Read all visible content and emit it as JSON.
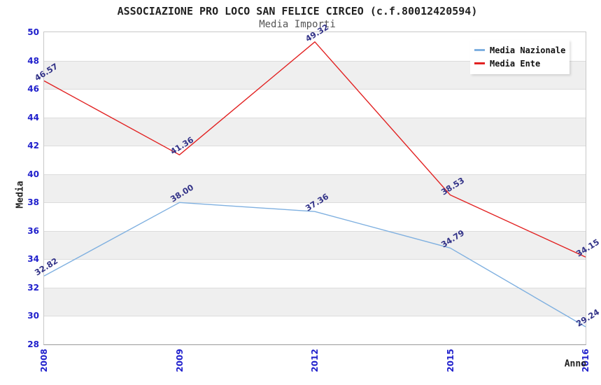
{
  "title": "ASSOCIAZIONE PRO LOCO SAN FELICE CIRCEO (c.f.80012420594)",
  "subtitle": "Media Importi",
  "chart_data": {
    "type": "line",
    "categories": [
      "2008",
      "2009",
      "2012",
      "2015",
      "2016"
    ],
    "series": [
      {
        "name": "Media Nazionale",
        "color": "#7fb0e0",
        "values": [
          32.82,
          38.0,
          37.36,
          34.79,
          29.24
        ]
      },
      {
        "name": "Media Ente",
        "color": "#e22222",
        "values": [
          46.57,
          41.36,
          49.32,
          38.53,
          34.15
        ]
      }
    ],
    "xlabel": "Anno",
    "ylabel": "Media",
    "ylim": [
      28,
      50
    ],
    "ytick_step": 2,
    "grid": true,
    "legend_position": "top-right",
    "band_colors": [
      "#ffffff",
      "#efefef"
    ],
    "tick_color": "#2020cc",
    "data_label_color": "#333388"
  }
}
